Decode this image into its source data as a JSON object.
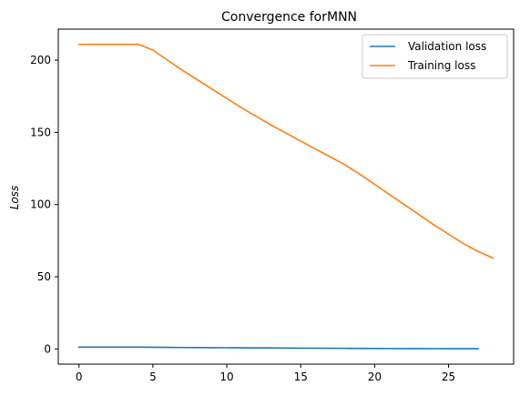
{
  "chart_data": {
    "type": "line",
    "title": "Convergence forMNN",
    "xlabel": "",
    "ylabel": "Loss",
    "xlim": [
      -1.4,
      29.4
    ],
    "ylim": [
      -10.5,
      221.5
    ],
    "xticks": [
      0,
      5,
      10,
      15,
      20,
      25
    ],
    "yticks": [
      0,
      50,
      100,
      150,
      200
    ],
    "grid": false,
    "legend_position": "top-right",
    "series": [
      {
        "name": "Validation loss",
        "color": "#1f77b4",
        "x": [
          0,
          1,
          2,
          3,
          4,
          5,
          6,
          7,
          8,
          9,
          10,
          11,
          12,
          13,
          14,
          15,
          16,
          17,
          18,
          19,
          20,
          21,
          22,
          23,
          24,
          25,
          26,
          27
        ],
        "y": [
          1.3,
          1.3,
          1.3,
          1.3,
          1.3,
          1.2,
          1.1,
          1.0,
          0.95,
          0.9,
          0.85,
          0.8,
          0.75,
          0.7,
          0.65,
          0.6,
          0.55,
          0.5,
          0.45,
          0.4,
          0.35,
          0.3,
          0.27,
          0.25,
          0.22,
          0.2,
          0.2,
          0.2
        ]
      },
      {
        "name": "Training loss",
        "color": "#ff7f0e",
        "x": [
          0,
          1,
          2,
          3,
          4,
          5,
          6,
          7,
          8,
          9,
          10,
          11,
          12,
          13,
          14,
          15,
          16,
          17,
          18,
          19,
          20,
          21,
          22,
          23,
          24,
          25,
          26,
          27,
          28
        ],
        "y": [
          211,
          211,
          211,
          211,
          211,
          207,
          200,
          193,
          186.5,
          180,
          173.5,
          167,
          161,
          155,
          149.5,
          144,
          138.5,
          133,
          127.5,
          121,
          114,
          107,
          100,
          93,
          86,
          79.5,
          73,
          67.5,
          63
        ]
      }
    ]
  }
}
